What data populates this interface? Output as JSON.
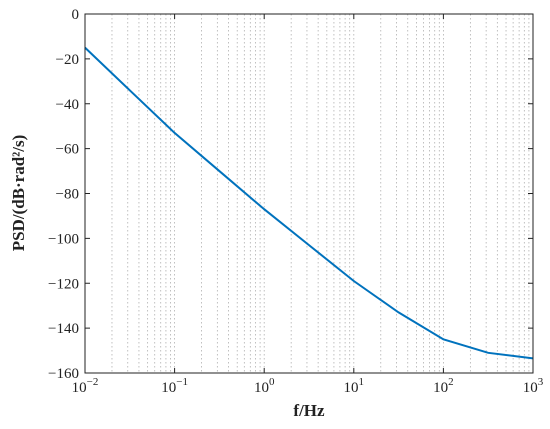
{
  "chart_data": {
    "type": "line",
    "xlabel": "f/Hz",
    "ylabel": "PSD/(dB·rad²/s)",
    "x": [
      0.01,
      0.0316,
      0.1,
      0.316,
      1,
      3.16,
      10,
      31.6,
      100,
      316,
      1000
    ],
    "series": [
      {
        "color": "#0072bd",
        "values": [
          -15,
          -34,
          -53,
          -70,
          -87,
          -103,
          -119,
          -133,
          -145,
          -151,
          -153.5
        ]
      }
    ],
    "xscale": "log",
    "xlim": [
      0.01,
      1000
    ],
    "xticks": [
      {
        "value": 0.01,
        "label": "10",
        "exponent": "−2"
      },
      {
        "value": 0.1,
        "label": "10",
        "exponent": "−1"
      },
      {
        "value": 1,
        "label": "10",
        "exponent": "0"
      },
      {
        "value": 10,
        "label": "10",
        "exponent": "1"
      },
      {
        "value": 100,
        "label": "10",
        "exponent": "2"
      },
      {
        "value": 1000,
        "label": "10",
        "exponent": "3"
      }
    ],
    "ylim": [
      -160,
      0
    ],
    "yticks": [
      {
        "value": -160,
        "label": "−160"
      },
      {
        "value": -140,
        "label": "−140"
      },
      {
        "value": -120,
        "label": "−120"
      },
      {
        "value": -100,
        "label": "−100"
      },
      {
        "value": -80,
        "label": "−80"
      },
      {
        "value": -60,
        "label": "−60"
      },
      {
        "value": -40,
        "label": "−40"
      },
      {
        "value": -20,
        "label": "−20"
      },
      0
    ],
    "grid": "x",
    "minor_grid": true
  }
}
